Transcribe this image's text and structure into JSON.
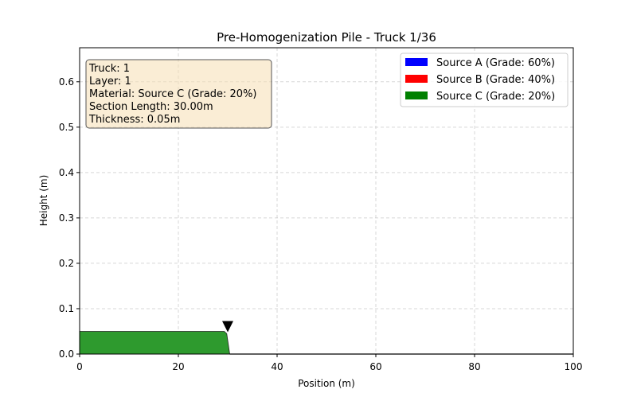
{
  "chart_data": {
    "type": "area",
    "title": "Pre-Homogenization Pile - Truck 1/36",
    "xlabel": "Position (m)",
    "ylabel": "Height (m)",
    "xlim": [
      0,
      100
    ],
    "ylim": [
      0,
      0.675
    ],
    "xticks": [
      "0",
      "20",
      "40",
      "60",
      "80",
      "100"
    ],
    "xtick_values": [
      0,
      20,
      40,
      60,
      80,
      100
    ],
    "yticks": [
      "0.0",
      "0.1",
      "0.2",
      "0.3",
      "0.4",
      "0.5",
      "0.6"
    ],
    "ytick_values": [
      0,
      0.1,
      0.2,
      0.3,
      0.4,
      0.5,
      0.6
    ],
    "grid": true,
    "legend_position": "top-right",
    "legend": [
      {
        "label": "Source A (Grade: 60%)",
        "color": "#0000ff"
      },
      {
        "label": "Source B (Grade: 40%)",
        "color": "#ff0000"
      },
      {
        "label": "Source C (Grade: 20%)",
        "color": "#008000"
      }
    ],
    "layers": [
      {
        "source": "Source C (Grade: 20%)",
        "color": "#2e9a2e",
        "points": [
          [
            0,
            0
          ],
          [
            0,
            0.05
          ],
          [
            29.3,
            0.05
          ],
          [
            29.8,
            0.045
          ],
          [
            30.0,
            0.03
          ],
          [
            30.4,
            0.0
          ]
        ]
      }
    ],
    "surface_line": [
      [
        30.4,
        0.0
      ],
      [
        100,
        0.0
      ]
    ],
    "marker": {
      "x": 30.0,
      "y": 0.05,
      "symbol": "down-triangle"
    },
    "info_box": [
      "Truck: 1",
      "Layer: 1",
      "Material: Source C (Grade: 20%)",
      "Section Length: 30.00m",
      "Thickness: 0.05m"
    ]
  }
}
